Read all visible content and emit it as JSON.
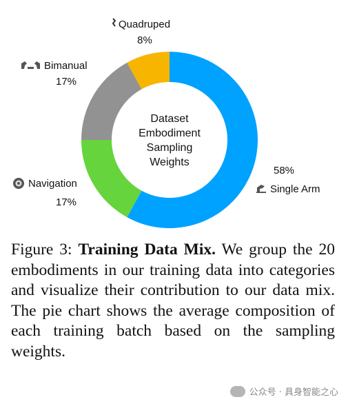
{
  "chart_data": {
    "type": "pie",
    "variant": "donut",
    "center_label": [
      "Dataset",
      "Embodiment",
      "Sampling",
      "Weights"
    ],
    "slices": [
      {
        "name": "Single Arm",
        "value": 58,
        "label": "58%",
        "color": "#00a2ff",
        "icon": "robot-arm-icon"
      },
      {
        "name": "Navigation",
        "value": 17,
        "label": "17%",
        "color": "#66d43c",
        "icon": "navigation-robot-icon"
      },
      {
        "name": "Bimanual",
        "value": 17,
        "label": "17%",
        "color": "#929292",
        "icon": "dual-arm-icon"
      },
      {
        "name": "Quadruped",
        "value": 8,
        "label": "8%",
        "color": "#f7b500",
        "icon": "quadruped-icon"
      }
    ],
    "start_angle_deg": 0,
    "direction": "clockwise"
  },
  "caption": {
    "prefix": "Figure 3: ",
    "title": "Training Data Mix.",
    "body": " We group the 20 embodiments in our train­i­ng data into categories and visualize their contribution to our data mix. The pie chart shows the average composition of each training batch based on the sam­pling weights."
  },
  "watermark": {
    "text": "公众号 · 具身智能之心",
    "icon": "wechat-icon"
  }
}
